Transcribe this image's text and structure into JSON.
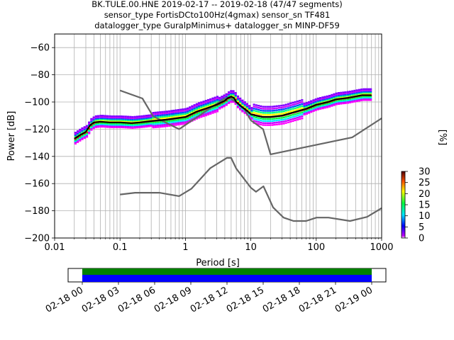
{
  "chart_data": [
    {
      "type": "line",
      "title": {
        "line1": "BK.TULE.00.HNE   2019-02-17 -- 2019-02-18  (47/47 segments)",
        "line2": "sensor_type FortisDCto100Hz(4gmax) sensor_sn TF481",
        "line3": "datalogger_type GuralpMinimus+ datalogger_sn MINP-DF59"
      },
      "xlabel": "Period [s]",
      "ylabel": "Power [dB]",
      "xscale": "log",
      "xlim": [
        0.01,
        1000
      ],
      "ylim": [
        -200,
        -50
      ],
      "xticks": [
        "0.01",
        "0.1",
        "1",
        "10",
        "100",
        "1000"
      ],
      "yticks": [
        "−200",
        "−180",
        "−160",
        "−140",
        "−120",
        "−100",
        "−80",
        "−60"
      ],
      "grid": true,
      "colors": {
        "noise_model": "#666666",
        "mode": "#000000"
      },
      "series": [
        {
          "role": "noise-model-high",
          "x": [
            0.1,
            0.22,
            0.32,
            0.8,
            3.8,
            4.6,
            6.3,
            7.9,
            10,
            15.4,
            20,
            354.8,
            1000
          ],
          "y": [
            -91.5,
            -97.4,
            -110.5,
            -120,
            -98,
            -96.5,
            -101,
            -105,
            -113.5,
            -120,
            -138.5,
            -126,
            -112
          ]
        },
        {
          "role": "noise-model-low",
          "x": [
            0.1,
            0.17,
            0.4,
            0.8,
            1.24,
            2.4,
            4.3,
            5,
            6,
            10,
            12,
            15.6,
            21.9,
            31.6,
            45,
            70,
            101,
            154,
            328,
            600,
            1000
          ],
          "y": [
            -168,
            -166.7,
            -166.7,
            -169.2,
            -163.7,
            -148.6,
            -141.1,
            -141.1,
            -149,
            -163,
            -166,
            -162,
            -177.5,
            -185,
            -187.5,
            -187.5,
            -185,
            -185,
            -187.5,
            -184.5,
            -178
          ]
        },
        {
          "role": "mode",
          "x": [
            0.02,
            0.025,
            0.03,
            0.035,
            0.04,
            0.05,
            0.07,
            0.1,
            0.15,
            0.2,
            0.3,
            0.5,
            1,
            1.5,
            2,
            3,
            4,
            4.5,
            5,
            5.5,
            6,
            7,
            8,
            9,
            10,
            12,
            15,
            20,
            30,
            50,
            70,
            100,
            150,
            200,
            300,
            500,
            700
          ],
          "y": [
            -127,
            -124,
            -122,
            -117,
            -115,
            -114.5,
            -115,
            -115,
            -115.5,
            -115,
            -114,
            -113,
            -111,
            -107,
            -105,
            -102,
            -99,
            -97,
            -96,
            -97,
            -100,
            -103,
            -105,
            -107,
            -109,
            -110,
            -111,
            -111,
            -110,
            -107,
            -105,
            -102,
            -100,
            -98,
            -97,
            -95,
            -95
          ]
        }
      ]
    },
    {
      "type": "bar",
      "role": "colorbar",
      "label": "[%]",
      "range": [
        0,
        30
      ],
      "ticks": [
        "0",
        "5",
        "10",
        "15",
        "20",
        "25",
        "30"
      ]
    },
    {
      "type": "bar",
      "role": "data-coverage",
      "tick_labels": [
        "02-18 00",
        "02-18 03",
        "02-18 06",
        "02-18 09",
        "02-18 12",
        "02-18 15",
        "02-18 18",
        "02-18 21",
        "02-19 00"
      ],
      "colors": {
        "used": "#008000",
        "available": "#0000ff"
      }
    }
  ]
}
